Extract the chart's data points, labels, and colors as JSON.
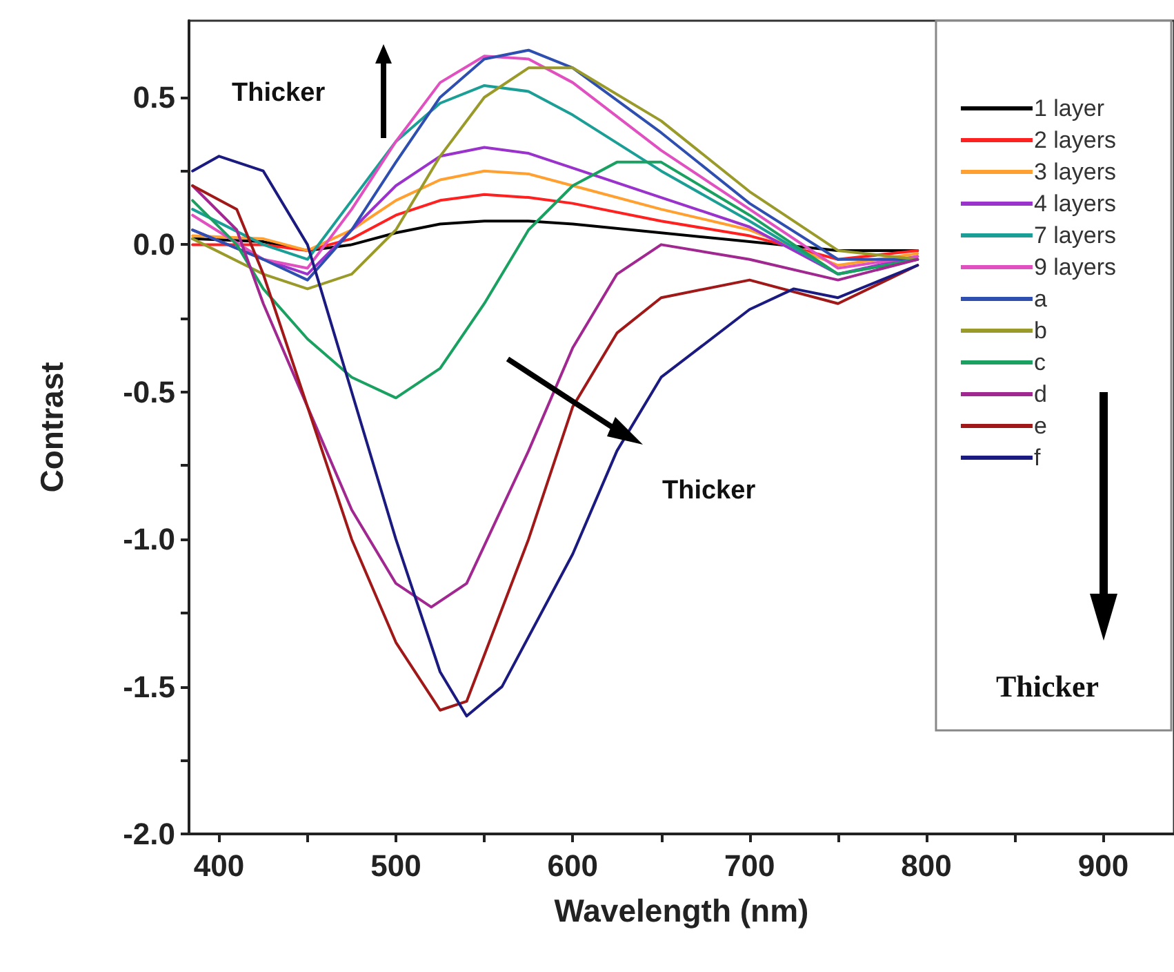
{
  "chart_data": {
    "type": "line",
    "xlabel": "Wavelength (nm)",
    "ylabel": "Contrast",
    "xlim": [
      383,
      940
    ],
    "ylim": [
      -2.0,
      0.76
    ],
    "xticks": [
      400,
      {
        "value": 450,
        "label": null
      },
      500,
      {
        "value": 550,
        "label": null
      },
      600,
      {
        "value": 650,
        "label": null
      },
      700,
      {
        "value": 750,
        "label": null
      },
      800,
      {
        "value": 850,
        "label": null
      },
      900
    ],
    "yticks": [
      {
        "value": -2,
        "label": "-2.0"
      },
      {
        "value": -1.75,
        "label": null
      },
      {
        "value": -1.5,
        "label": "-1.5"
      },
      {
        "value": -1.25,
        "label": null
      },
      {
        "value": -1,
        "label": "-1.0"
      },
      {
        "value": -0.75,
        "label": null
      },
      {
        "value": -0.5,
        "label": "-0.5"
      },
      {
        "value": -0.25,
        "label": null
      },
      {
        "value": 0,
        "label": "0.0"
      },
      {
        "value": 0.25,
        "label": null
      },
      {
        "value": 0.5,
        "label": "0.5"
      }
    ],
    "grid": false,
    "legend": "right",
    "marker": "none",
    "line_style": "solid",
    "legend_title": "Thicker",
    "annotations": [
      "Thicker",
      "Thicker"
    ],
    "series": [
      {
        "name": "1 layer",
        "color": "#000000",
        "x": [
          385,
          425,
          450,
          475,
          500,
          525,
          550,
          575,
          600,
          650,
          700,
          750,
          795
        ],
        "values": [
          0.02,
          0.01,
          -0.02,
          0.0,
          0.04,
          0.07,
          0.08,
          0.08,
          0.07,
          0.04,
          0.01,
          -0.02,
          -0.02
        ]
      },
      {
        "name": "2 layers",
        "color": "#ff2020",
        "x": [
          385,
          425,
          450,
          475,
          500,
          525,
          550,
          575,
          600,
          650,
          700,
          750,
          795
        ],
        "values": [
          0.0,
          0.0,
          -0.02,
          0.02,
          0.1,
          0.15,
          0.17,
          0.16,
          0.14,
          0.08,
          0.03,
          -0.05,
          -0.02
        ]
      },
      {
        "name": "3 layers",
        "color": "#ffa030",
        "x": [
          385,
          425,
          450,
          475,
          500,
          525,
          550,
          575,
          600,
          650,
          700,
          750,
          795
        ],
        "values": [
          0.03,
          0.02,
          -0.02,
          0.05,
          0.15,
          0.22,
          0.25,
          0.24,
          0.2,
          0.12,
          0.05,
          -0.07,
          -0.03
        ]
      },
      {
        "name": "4 layers",
        "color": "#9933cc",
        "x": [
          385,
          425,
          450,
          475,
          500,
          525,
          550,
          575,
          600,
          650,
          700,
          750,
          795
        ],
        "values": [
          0.05,
          -0.05,
          -0.1,
          0.05,
          0.2,
          0.3,
          0.33,
          0.31,
          0.26,
          0.16,
          0.06,
          -0.1,
          -0.04
        ]
      },
      {
        "name": "7 layers",
        "color": "#1a9e96",
        "x": [
          385,
          425,
          450,
          475,
          500,
          525,
          550,
          575,
          600,
          650,
          700,
          750,
          795
        ],
        "values": [
          0.12,
          0.0,
          -0.05,
          0.15,
          0.35,
          0.48,
          0.54,
          0.52,
          0.44,
          0.25,
          0.08,
          -0.1,
          -0.05
        ]
      },
      {
        "name": "9 layers",
        "color": "#e050c0",
        "x": [
          385,
          425,
          450,
          475,
          500,
          525,
          550,
          575,
          600,
          650,
          700,
          750,
          795
        ],
        "values": [
          0.1,
          -0.05,
          -0.08,
          0.12,
          0.35,
          0.55,
          0.64,
          0.63,
          0.55,
          0.32,
          0.12,
          -0.08,
          -0.04
        ]
      },
      {
        "name": "a",
        "color": "#2e4fb0",
        "x": [
          385,
          425,
          450,
          475,
          500,
          525,
          550,
          575,
          600,
          650,
          700,
          750,
          795
        ],
        "values": [
          0.05,
          -0.05,
          -0.12,
          0.05,
          0.28,
          0.5,
          0.63,
          0.66,
          0.6,
          0.38,
          0.14,
          -0.05,
          -0.05
        ]
      },
      {
        "name": "b",
        "color": "#9a9a2a",
        "x": [
          385,
          425,
          450,
          475,
          500,
          525,
          550,
          575,
          600,
          650,
          700,
          750,
          795
        ],
        "values": [
          0.02,
          -0.1,
          -0.15,
          -0.1,
          0.05,
          0.3,
          0.5,
          0.6,
          0.6,
          0.42,
          0.18,
          -0.02,
          -0.05
        ]
      },
      {
        "name": "c",
        "color": "#1aa060",
        "x": [
          385,
          410,
          425,
          450,
          475,
          500,
          525,
          550,
          575,
          600,
          625,
          650,
          700,
          750,
          795
        ],
        "values": [
          0.15,
          0.0,
          -0.15,
          -0.32,
          -0.45,
          -0.52,
          -0.42,
          -0.2,
          0.05,
          0.2,
          0.28,
          0.28,
          0.1,
          -0.1,
          -0.05
        ]
      },
      {
        "name": "d",
        "color": "#a02890",
        "x": [
          385,
          410,
          425,
          450,
          475,
          500,
          520,
          540,
          575,
          600,
          625,
          650,
          700,
          750,
          795
        ],
        "values": [
          0.2,
          0.05,
          -0.2,
          -0.55,
          -0.9,
          -1.15,
          -1.23,
          -1.15,
          -0.7,
          -0.35,
          -0.1,
          0.0,
          -0.05,
          -0.12,
          -0.05
        ]
      },
      {
        "name": "e",
        "color": "#a01818",
        "x": [
          385,
          410,
          425,
          450,
          475,
          500,
          525,
          540,
          575,
          600,
          625,
          650,
          700,
          750,
          795
        ],
        "values": [
          0.2,
          0.12,
          -0.1,
          -0.55,
          -1.0,
          -1.35,
          -1.58,
          -1.55,
          -1.0,
          -0.55,
          -0.3,
          -0.18,
          -0.12,
          -0.2,
          -0.07
        ]
      },
      {
        "name": "f",
        "color": "#1a1a80",
        "x": [
          385,
          400,
          425,
          450,
          475,
          500,
          525,
          540,
          560,
          600,
          625,
          650,
          700,
          725,
          750,
          795
        ],
        "values": [
          0.25,
          0.3,
          0.25,
          0.0,
          -0.5,
          -1.0,
          -1.45,
          -1.6,
          -1.5,
          -1.05,
          -0.7,
          -0.45,
          -0.22,
          -0.15,
          -0.18,
          -0.07
        ]
      }
    ]
  }
}
